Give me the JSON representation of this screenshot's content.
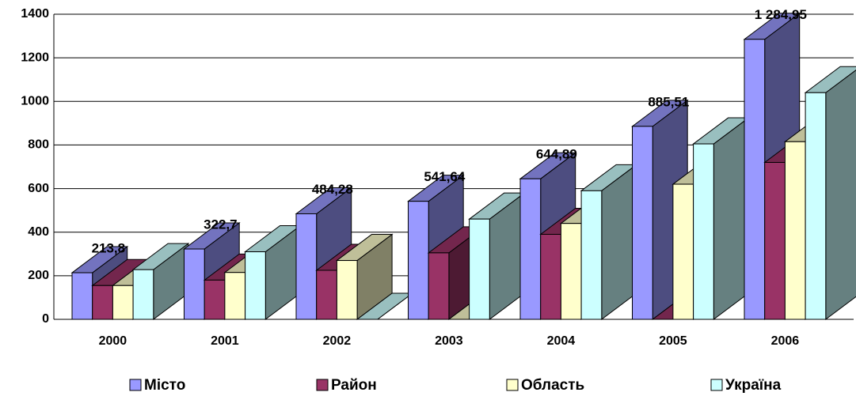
{
  "chart_data": {
    "type": "bar3d",
    "categories": [
      "2000",
      "2001",
      "2002",
      "2003",
      "2004",
      "2005",
      "2006"
    ],
    "series": [
      {
        "name": "Місто",
        "color": "#9999ff",
        "values": [
          213.8,
          322.7,
          484.28,
          541.64,
          644.89,
          885.51,
          1284.95
        ],
        "value_labels": [
          "213,8",
          "322,7",
          "484,28",
          "541,64",
          "644,89",
          "885,51",
          "1 284,95"
        ]
      },
      {
        "name": "Район",
        "color": "#993366",
        "values": [
          155,
          180,
          225,
          305,
          390,
          0,
          720
        ]
      },
      {
        "name": "Область",
        "color": "#ffffcc",
        "values": [
          155,
          215,
          270,
          0,
          440,
          620,
          815
        ]
      },
      {
        "name": "Україна",
        "color": "#ccffff",
        "values": [
          228,
          310,
          0,
          460,
          590,
          805,
          1040
        ]
      }
    ],
    "ylim": [
      0,
      1400
    ],
    "yticks": [
      0,
      200,
      400,
      600,
      800,
      1000,
      1200,
      1400
    ],
    "grid": true,
    "legend": "bottom"
  }
}
